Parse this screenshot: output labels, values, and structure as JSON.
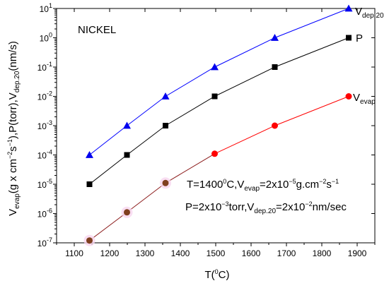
{
  "chart_data": {
    "type": "line",
    "title": "",
    "panel_label": "NICKEL",
    "y_scale": "log",
    "ylim": [
      1e-07,
      10
    ],
    "xlim": [
      1050,
      1950
    ],
    "x_ticks": [
      1100,
      1200,
      1300,
      1400,
      1500,
      1600,
      1700,
      1800,
      1900
    ],
    "y_tick_mantissa": "10",
    "y_tick_exponents": [
      "-7",
      "-6",
      "-5",
      "-4",
      "-3",
      "-2",
      "-1",
      "0",
      "1"
    ],
    "xlabel": {
      "base": "T(",
      "sup": "0",
      "tail": "C)"
    },
    "ylabel": {
      "p1": "V",
      "p1_sub": "evap",
      "p2": "(g x cm",
      "p2_sup": "−2",
      "p3": "s",
      "p3_sup": "−1",
      "p4": "),P(torr),V",
      "p4_sub": "dep.20",
      "p5": "(nm/s)"
    },
    "series": [
      {
        "key": "vdep",
        "label_main": "V",
        "label_sub": "dep.20",
        "marker": "triangle",
        "color": "#0000ff",
        "marker_color": "#0000ee",
        "x": [
          1143,
          1249,
          1358,
          1497,
          1667,
          1876
        ],
        "y": [
          0.0001,
          0.001,
          0.01,
          0.1,
          1,
          10
        ]
      },
      {
        "key": "p",
        "label_main": "P",
        "label_sub": "",
        "marker": "square",
        "color": "#000000",
        "marker_color": "#000000",
        "x": [
          1143,
          1249,
          1358,
          1497,
          1667,
          1876
        ],
        "y": [
          1e-05,
          0.0001,
          0.001,
          0.01,
          0.1,
          1
        ]
      },
      {
        "key": "vevap",
        "label_main": "V",
        "label_sub": "evap",
        "marker": "circle",
        "color": "#ff0000",
        "marker_color": "#ff0000",
        "dark_color": "#8b1a1a",
        "lower_marker_color": "#7f3f1f",
        "x": [
          1143,
          1249,
          1358,
          1497,
          1667,
          1876
        ],
        "y": [
          1.2e-07,
          1.1e-06,
          1.1e-05,
          0.00011,
          0.001,
          0.01
        ]
      }
    ],
    "annotations": {
      "line1": {
        "a": "T=1400",
        "a_sup": "0",
        "b": "C,V",
        "b_sub": "evap",
        "c": "=2x10",
        "c_sup": "−5",
        "d": "g.cm",
        "d_sup": "−2",
        "e": "s",
        "e_sup": "−1"
      },
      "line2": {
        "a": "P=2x10",
        "a_sup": "−3",
        "b": "torr,V",
        "b_sub": "dep.20",
        "c": "=2x10",
        "c_sup": "−2",
        "d": "nm/sec"
      }
    },
    "grid": false,
    "legend": "inline-right"
  }
}
